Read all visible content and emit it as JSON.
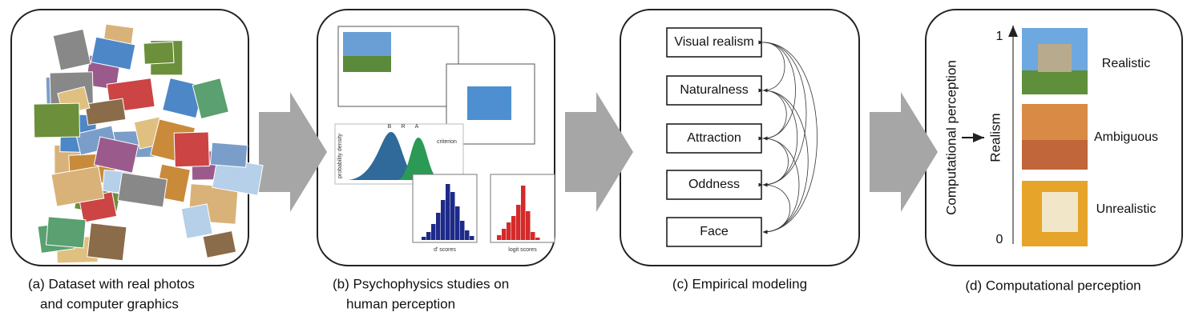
{
  "panels": [
    {
      "caption": [
        "(a) Dataset with real photos",
        "and computer graphics"
      ]
    },
    {
      "caption": [
        "(b) Psychophysics studies on",
        "human perception"
      ],
      "plot_labels": {
        "y_axis": "probability density",
        "criterion": "criterion",
        "markers": [
          "B",
          "R",
          "A"
        ],
        "hist1_x": "d' scores",
        "hist2_x": "logit scores"
      }
    },
    {
      "caption": [
        "(c) Empirical modeling"
      ],
      "factors": [
        "Visual realism",
        "Naturalness",
        "Attraction",
        "Oddness",
        "Face"
      ]
    },
    {
      "caption": [
        "(d) Computational perception"
      ],
      "side_label": "Computational perception",
      "axis_label": "Realism",
      "axis_top": "1",
      "axis_bottom": "0",
      "levels": [
        "Realistic",
        "Ambiguous",
        "Unrealistic"
      ]
    }
  ]
}
